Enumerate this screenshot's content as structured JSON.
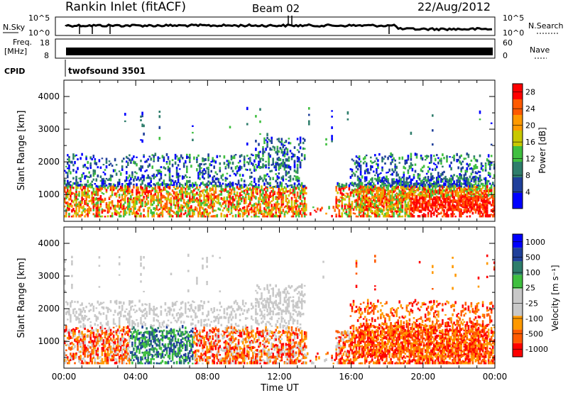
{
  "header": {
    "title": "Rankin Inlet (fitACF)",
    "beam": "Beam 02",
    "date": "22/Aug/2012"
  },
  "top_panels": {
    "nsky_label": "N.Sky",
    "nsearch_label": "N.Search",
    "nsky_ticks": [
      "10^5",
      "10^0"
    ],
    "nsearch_ticks": [
      "10^5",
      "10^0"
    ],
    "freq_label_1": "Freq.",
    "freq_label_2": "[MHz]",
    "freq_ticks": [
      "18",
      "8"
    ],
    "nave_label": "Nave",
    "nave_ticks": [
      "60",
      "0"
    ],
    "cpid_label": "CPID",
    "cpid_value": "twofsound 3501"
  },
  "colors": {
    "power_scale": [
      "#0000ff",
      "#1f3f9a",
      "#2e7d6b",
      "#3fbf3f",
      "#c8c800",
      "#ff9900",
      "#ff5a00",
      "#ff0000"
    ],
    "velocity_scale": [
      "#ff0000",
      "#ff5a00",
      "#ff9900",
      "#c8c8c8",
      "#c8c8c8",
      "#3fbf3f",
      "#2e7d6b",
      "#1f3f9a",
      "#0000ff"
    ]
  },
  "chart_data": [
    {
      "type": "heatmap",
      "name": "power",
      "xlabel": "",
      "ylabel": "Slant Range [km]",
      "x_ticks": [
        "00:00",
        "04:00",
        "08:00",
        "12:00",
        "16:00",
        "20:00",
        "00:00"
      ],
      "y_ticks": [
        1000,
        2000,
        3000,
        4000
      ],
      "ylim": [
        180,
        4500
      ],
      "colorbar_label": "Power [dB]",
      "colorbar_ticks": [
        4,
        8,
        12,
        16,
        20,
        24,
        28
      ],
      "colorbar_range": [
        0,
        30
      ]
    },
    {
      "type": "heatmap",
      "name": "velocity",
      "xlabel": "Time UT",
      "ylabel": "Slant Range [km]",
      "x_ticks": [
        "00:00",
        "04:00",
        "08:00",
        "12:00",
        "16:00",
        "20:00",
        "00:00"
      ],
      "y_ticks": [
        1000,
        2000,
        3000,
        4000
      ],
      "ylim": [
        180,
        4500
      ],
      "colorbar_label": "Velocity [m s⁻¹]",
      "colorbar_ticks": [
        1000,
        500,
        100,
        25,
        -25,
        -100,
        -500,
        -1000
      ]
    }
  ]
}
